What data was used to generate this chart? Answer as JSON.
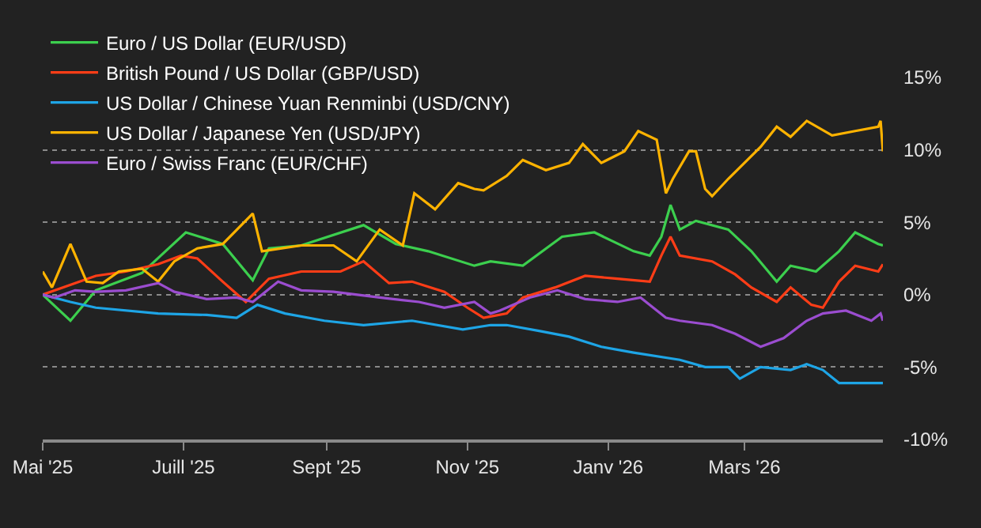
{
  "chart_data": {
    "type": "line",
    "xlim": [
      "2025-05-01",
      "2026-04-30"
    ],
    "xticks": [
      {
        "value": "2025-05-01",
        "label": "Mai '25"
      },
      {
        "value": "2025-07-01",
        "label": "Juill '25"
      },
      {
        "value": "2025-09-01",
        "label": "Sept '25"
      },
      {
        "value": "2025-11-01",
        "label": "Nov '25"
      },
      {
        "value": "2026-01-01",
        "label": "Janv '26"
      },
      {
        "value": "2026-03-01",
        "label": "Mars '26"
      }
    ],
    "ylim": [
      -10,
      15
    ],
    "yticks": [
      {
        "value": -10,
        "label": "-10%"
      },
      {
        "value": -5,
        "label": "-5%"
      },
      {
        "value": 0,
        "label": "0%"
      },
      {
        "value": 5,
        "label": "5%"
      },
      {
        "value": 10,
        "label": "10%"
      },
      {
        "value": 15,
        "label": "15%"
      }
    ],
    "grid": "y",
    "legend": "top left",
    "marker": "none",
    "line_style": "solid",
    "series": [
      {
        "name": "Euro / US Dollar (EUR/USD)",
        "color": "#3ccf4e",
        "x": [
          "2025-05-01",
          "2025-05-13",
          "2025-05-24",
          "2025-06-13",
          "2025-07-02",
          "2025-07-18",
          "2025-07-31",
          "2025-08-07",
          "2025-08-21",
          "2025-09-17",
          "2025-10-01",
          "2025-10-15",
          "2025-11-04",
          "2025-11-11",
          "2025-11-25",
          "2025-12-12",
          "2025-12-26",
          "2026-01-12",
          "2026-01-19",
          "2026-01-24",
          "2026-01-28",
          "2026-02-01",
          "2026-02-08",
          "2026-02-22",
          "2026-03-04",
          "2026-03-15",
          "2026-03-21",
          "2026-04-01",
          "2026-04-11",
          "2026-04-18",
          "2026-04-28",
          "2026-04-30"
        ],
        "values": [
          0,
          -1.8,
          0.3,
          1.5,
          4.3,
          3.5,
          1,
          3.2,
          3.4,
          4.8,
          3.5,
          3,
          2,
          2.3,
          2,
          4,
          4.3,
          3,
          2.7,
          4,
          6.2,
          4.5,
          5.1,
          4.5,
          3,
          0.9,
          2,
          1.6,
          3,
          4.3,
          3.5,
          3.4
        ]
      },
      {
        "name": "British Pound / US Dollar (GBP/USD)",
        "color": "#ff3d17",
        "x": [
          "2025-05-01",
          "2025-05-24",
          "2025-06-06",
          "2025-06-20",
          "2025-06-30",
          "2025-07-07",
          "2025-07-18",
          "2025-07-28",
          "2025-08-07",
          "2025-08-21",
          "2025-09-07",
          "2025-09-17",
          "2025-09-28",
          "2025-10-08",
          "2025-10-22",
          "2025-11-01",
          "2025-11-08",
          "2025-11-18",
          "2025-11-25",
          "2025-12-09",
          "2025-12-22",
          "2026-01-05",
          "2026-01-19",
          "2026-01-24",
          "2026-01-28",
          "2026-02-01",
          "2026-02-15",
          "2026-02-25",
          "2026-03-04",
          "2026-03-15",
          "2026-03-21",
          "2026-03-30",
          "2026-04-04",
          "2026-04-11",
          "2026-04-18",
          "2026-04-28",
          "2026-04-30"
        ],
        "values": [
          0,
          1.3,
          1.6,
          2.1,
          2.7,
          2.5,
          0.9,
          -0.5,
          1.1,
          1.6,
          1.6,
          2.3,
          0.8,
          0.9,
          0.2,
          -0.9,
          -1.6,
          -1.3,
          -0.2,
          0.5,
          1.3,
          1.1,
          0.9,
          2.7,
          4,
          2.7,
          2.3,
          1.4,
          0.5,
          -0.5,
          0.5,
          -0.7,
          -0.9,
          0.9,
          2,
          1.6,
          2.1
        ]
      },
      {
        "name": "US Dollar / Chinese Yuan Renminbi (USD/CNY)",
        "color": "#1ea5e6",
        "x": [
          "2025-05-01",
          "2025-05-13",
          "2025-05-24",
          "2025-06-20",
          "2025-07-11",
          "2025-07-24",
          "2025-08-02",
          "2025-08-14",
          "2025-08-31",
          "2025-09-17",
          "2025-10-08",
          "2025-10-30",
          "2025-11-11",
          "2025-11-18",
          "2025-12-02",
          "2025-12-15",
          "2025-12-29",
          "2026-01-12",
          "2026-02-01",
          "2026-02-12",
          "2026-02-22",
          "2026-02-27",
          "2026-03-08",
          "2026-03-21",
          "2026-03-28",
          "2026-04-04",
          "2026-04-11",
          "2026-04-21",
          "2026-04-30"
        ],
        "values": [
          0,
          -0.5,
          -0.9,
          -1.3,
          -1.4,
          -1.6,
          -0.7,
          -1.3,
          -1.8,
          -2.1,
          -1.8,
          -2.4,
          -2.1,
          -2.1,
          -2.5,
          -2.9,
          -3.6,
          -4,
          -4.5,
          -5,
          -5,
          -5.8,
          -5,
          -5.2,
          -4.8,
          -5.2,
          -6.1,
          -6.1,
          -6.1
        ]
      },
      {
        "name": "US Dollar / Japanese Yen (USD/JPY)",
        "color": "#ffb300",
        "x": [
          "2025-05-01",
          "2025-05-05",
          "2025-05-13",
          "2025-05-20",
          "2025-05-27",
          "2025-06-03",
          "2025-06-13",
          "2025-06-20",
          "2025-06-27",
          "2025-07-07",
          "2025-07-18",
          "2025-07-31",
          "2025-08-04",
          "2025-08-21",
          "2025-09-04",
          "2025-09-14",
          "2025-09-24",
          "2025-10-04",
          "2025-10-09",
          "2025-10-18",
          "2025-10-28",
          "2025-11-04",
          "2025-11-08",
          "2025-11-18",
          "2025-11-25",
          "2025-12-05",
          "2025-12-15",
          "2025-12-21",
          "2025-12-29",
          "2026-01-08",
          "2026-01-14",
          "2026-01-22",
          "2026-01-26",
          "2026-01-29",
          "2026-02-05",
          "2026-02-08",
          "2026-02-12",
          "2026-02-15",
          "2026-02-22",
          "2026-03-01",
          "2026-03-08",
          "2026-03-15",
          "2026-03-21",
          "2026-03-28",
          "2026-04-08",
          "2026-04-18",
          "2026-04-28",
          "2026-04-29",
          "2026-04-30"
        ],
        "values": [
          1.6,
          0.5,
          3.5,
          0.9,
          0.8,
          1.6,
          1.8,
          0.9,
          2.3,
          3.2,
          3.5,
          5.6,
          3,
          3.4,
          3.4,
          2.3,
          4.5,
          3.4,
          7,
          5.9,
          7.7,
          7.3,
          7.2,
          8.2,
          9.3,
          8.6,
          9.1,
          10.4,
          9.1,
          9.9,
          11.3,
          10.7,
          7,
          8,
          9.9,
          9.9,
          7.3,
          6.8,
          8,
          9.1,
          10.2,
          11.6,
          10.9,
          12,
          11,
          11.3,
          11.6,
          12,
          9.9
        ]
      },
      {
        "name": "Euro / Swiss Franc (EUR/CHF)",
        "color": "#9b4dd0",
        "x": [
          "2025-05-01",
          "2025-05-06",
          "2025-05-15",
          "2025-05-24",
          "2025-06-06",
          "2025-06-20",
          "2025-06-27",
          "2025-07-11",
          "2025-07-24",
          "2025-07-31",
          "2025-08-11",
          "2025-08-21",
          "2025-09-04",
          "2025-09-24",
          "2025-10-11",
          "2025-10-22",
          "2025-11-04",
          "2025-11-11",
          "2025-11-15",
          "2025-11-28",
          "2025-12-10",
          "2025-12-22",
          "2026-01-05",
          "2026-01-15",
          "2026-01-26",
          "2026-02-01",
          "2026-02-15",
          "2026-02-25",
          "2026-03-08",
          "2026-03-18",
          "2026-03-28",
          "2026-04-04",
          "2026-04-14",
          "2026-04-25",
          "2026-04-29",
          "2026-04-30"
        ],
        "values": [
          0,
          -0.2,
          0.3,
          0.2,
          0.3,
          0.8,
          0.2,
          -0.3,
          -0.2,
          -0.5,
          0.9,
          0.3,
          0.2,
          -0.2,
          -0.5,
          -0.9,
          -0.5,
          -1.3,
          -1.1,
          -0.2,
          0.3,
          -0.3,
          -0.5,
          -0.2,
          -1.6,
          -1.8,
          -2.1,
          -2.7,
          -3.6,
          -3,
          -1.8,
          -1.3,
          -1.1,
          -1.8,
          -1.3,
          -1.8
        ]
      }
    ]
  }
}
